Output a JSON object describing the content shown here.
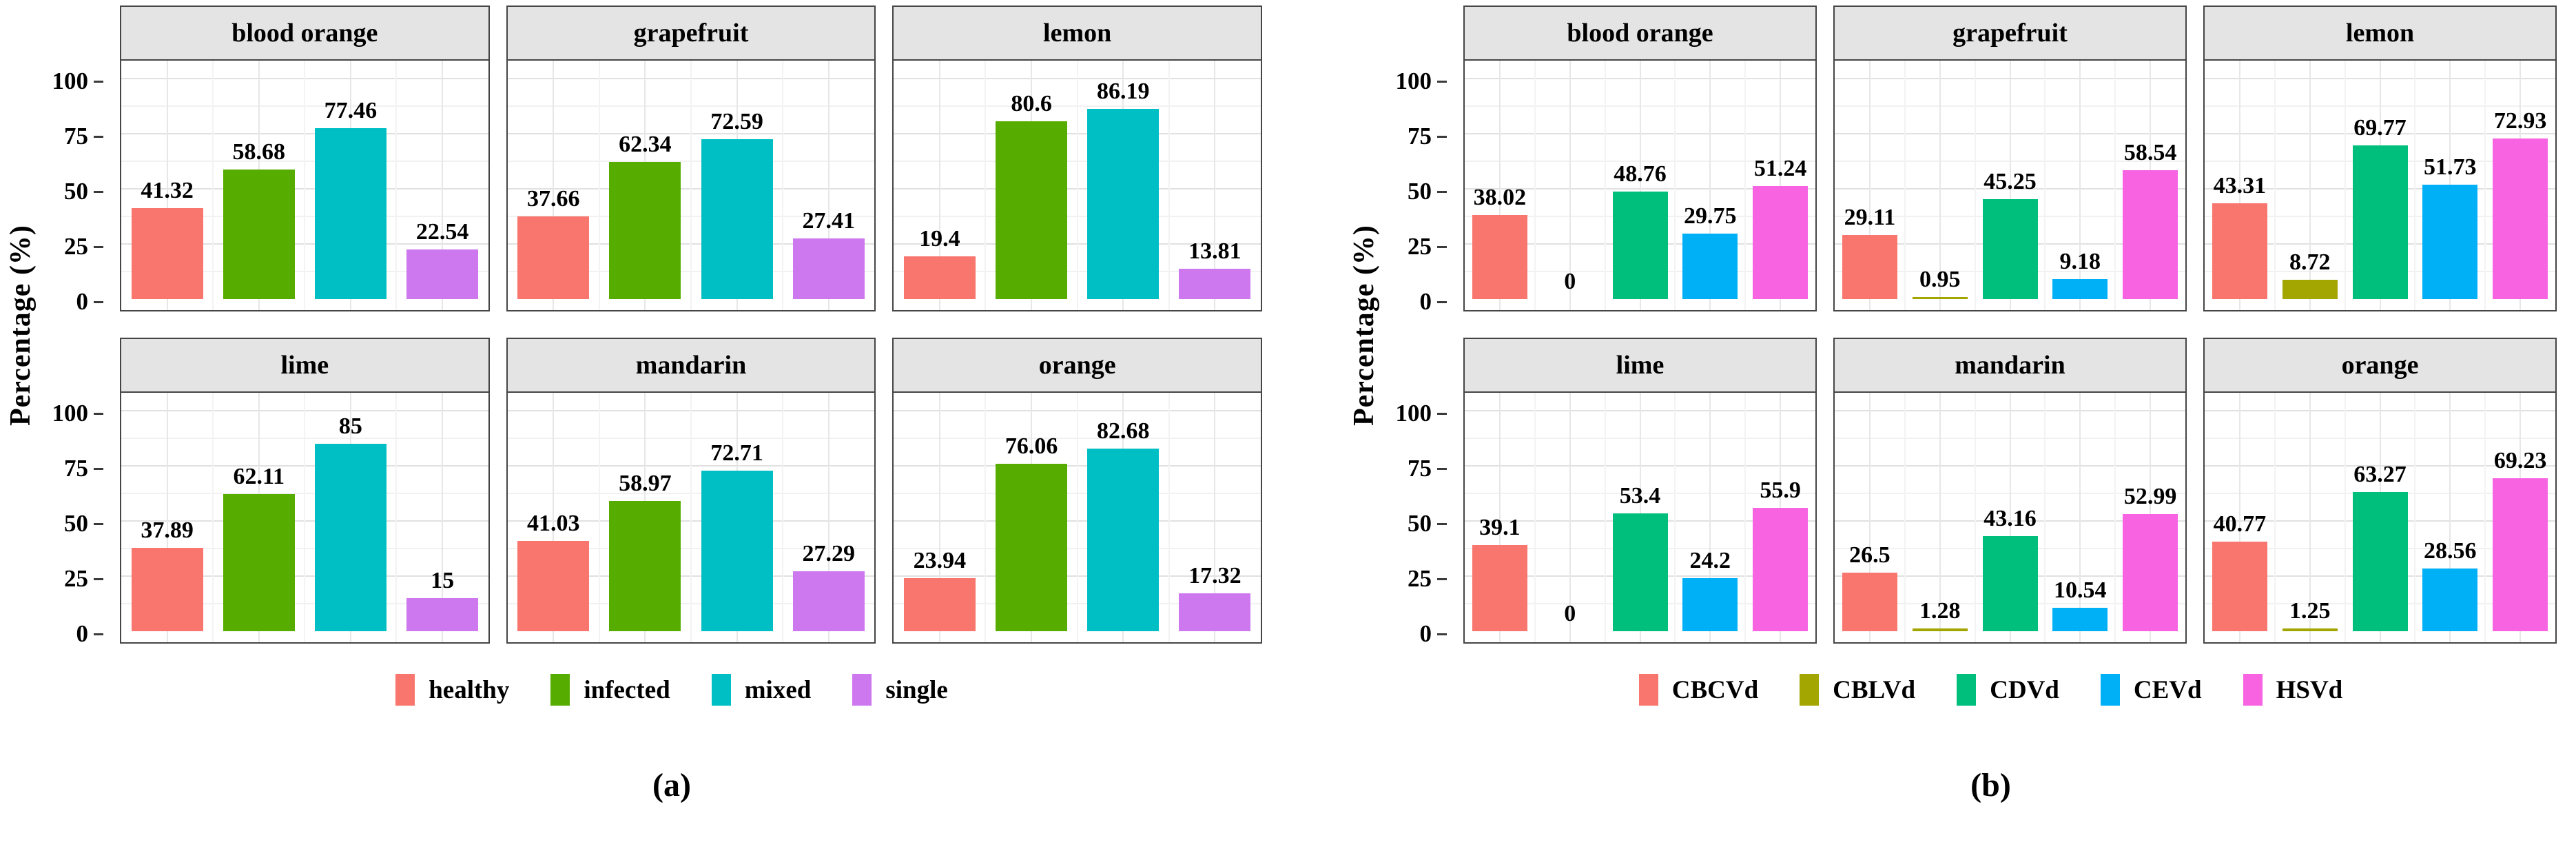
{
  "chart_data": [
    {
      "id": "a",
      "caption": "(a)",
      "type": "bar",
      "ylabel": "Percentage (%)",
      "ylim": [
        0,
        100
      ],
      "grid": true,
      "legend_position": "bottom",
      "facet_layout": {
        "rows": 2,
        "cols": 3
      },
      "yticks": [
        {
          "label": "0",
          "value": 0
        },
        {
          "label": "25",
          "value": 25
        },
        {
          "label": "50",
          "value": 50
        },
        {
          "label": "75",
          "value": 75
        },
        {
          "label": "100",
          "value": 100
        }
      ],
      "minor_yticks": [
        12.5,
        37.5,
        62.5,
        87.5
      ],
      "series": [
        {
          "name": "healthy",
          "color": "#F8766D"
        },
        {
          "name": "infected",
          "color": "#56AD00"
        },
        {
          "name": "mixed",
          "color": "#00BFC4"
        },
        {
          "name": "single",
          "color": "#CE78F0"
        }
      ],
      "facets": [
        {
          "label": "blood orange",
          "values": [
            41.32,
            58.68,
            77.46,
            22.54
          ],
          "labels": [
            "41.32",
            "58.68",
            "77.46",
            "22.54"
          ]
        },
        {
          "label": "grapefruit",
          "values": [
            37.66,
            62.34,
            72.59,
            27.41
          ],
          "labels": [
            "37.66",
            "62.34",
            "72.59",
            "27.41"
          ]
        },
        {
          "label": "lemon",
          "values": [
            19.4,
            80.6,
            86.19,
            13.81
          ],
          "labels": [
            "19.4",
            "80.6",
            "86.19",
            "13.81"
          ]
        },
        {
          "label": "lime",
          "values": [
            37.89,
            62.11,
            85,
            15
          ],
          "labels": [
            "37.89",
            "62.11",
            "85",
            "15"
          ]
        },
        {
          "label": "mandarin",
          "values": [
            41.03,
            58.97,
            72.71,
            27.29
          ],
          "labels": [
            "41.03",
            "58.97",
            "72.71",
            "27.29"
          ]
        },
        {
          "label": "orange",
          "values": [
            23.94,
            76.06,
            82.68,
            17.32
          ],
          "labels": [
            "23.94",
            "76.06",
            "82.68",
            "17.32"
          ]
        }
      ]
    },
    {
      "id": "b",
      "caption": "(b)",
      "type": "bar",
      "ylabel": "Percentage (%)",
      "ylim": [
        0,
        100
      ],
      "grid": true,
      "legend_position": "bottom",
      "facet_layout": {
        "rows": 2,
        "cols": 3
      },
      "yticks": [
        {
          "label": "0",
          "value": 0
        },
        {
          "label": "25",
          "value": 25
        },
        {
          "label": "50",
          "value": 50
        },
        {
          "label": "75",
          "value": 75
        },
        {
          "label": "100",
          "value": 100
        }
      ],
      "minor_yticks": [
        12.5,
        37.5,
        62.5,
        87.5
      ],
      "series": [
        {
          "name": "CBCVd",
          "color": "#F8766D"
        },
        {
          "name": "CBLVd",
          "color": "#A3A500"
        },
        {
          "name": "CDVd",
          "color": "#00BF7D"
        },
        {
          "name": "CEVd",
          "color": "#00B0F6"
        },
        {
          "name": "HSVd",
          "color": "#F763E1"
        }
      ],
      "facets": [
        {
          "label": "blood orange",
          "values": [
            38.02,
            0,
            48.76,
            29.75,
            51.24
          ],
          "labels": [
            "38.02",
            "0",
            "48.76",
            "29.75",
            "51.24"
          ]
        },
        {
          "label": "grapefruit",
          "values": [
            29.11,
            0.95,
            45.25,
            9.18,
            58.54
          ],
          "labels": [
            "29.11",
            "0.95",
            "45.25",
            "9.18",
            "58.54"
          ]
        },
        {
          "label": "lemon",
          "values": [
            43.31,
            8.72,
            69.77,
            51.73,
            72.93
          ],
          "labels": [
            "43.31",
            "8.72",
            "69.77",
            "51.73",
            "72.93"
          ]
        },
        {
          "label": "lime",
          "values": [
            39.1,
            0,
            53.4,
            24.2,
            55.9
          ],
          "labels": [
            "39.1",
            "0",
            "53.4",
            "24.2",
            "55.9"
          ]
        },
        {
          "label": "mandarin",
          "values": [
            26.5,
            1.28,
            43.16,
            10.54,
            52.99
          ],
          "labels": [
            "26.5",
            "1.28",
            "43.16",
            "10.54",
            "52.99"
          ]
        },
        {
          "label": "orange",
          "values": [
            40.77,
            1.25,
            63.27,
            28.56,
            69.23
          ],
          "labels": [
            "40.77",
            "1.25",
            "63.27",
            "28.56",
            "69.23"
          ]
        }
      ]
    }
  ]
}
